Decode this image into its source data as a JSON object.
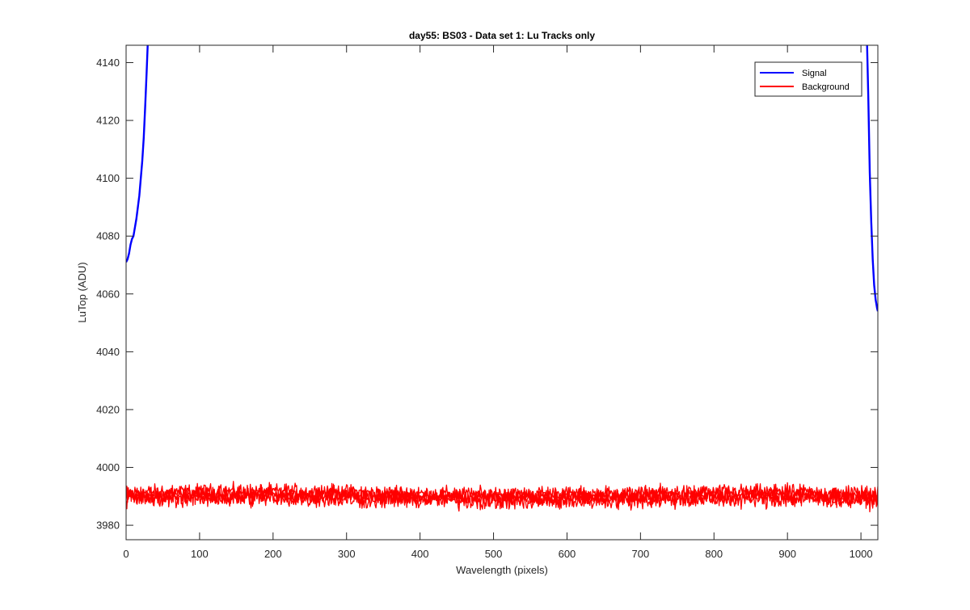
{
  "chart_data": {
    "type": "line",
    "title": "day55: BS03 - Data set 1: Lu Tracks only",
    "xlabel": "Wavelength (pixels)",
    "ylabel": "LuTop (ADU)",
    "xlim": [
      0,
      1023
    ],
    "ylim": [
      3975,
      4146
    ],
    "xticks": [
      0,
      100,
      200,
      300,
      400,
      500,
      600,
      700,
      800,
      900,
      1000
    ],
    "yticks": [
      3980,
      4000,
      4020,
      4040,
      4060,
      4080,
      4100,
      4120,
      4140
    ],
    "grid": false,
    "legend_position": "top-right",
    "series": [
      {
        "name": "Signal",
        "color": "#0000ff",
        "segments": [
          {
            "x": [
              0,
              2,
              4,
              6,
              8,
              10,
              12,
              14,
              16,
              18,
              20,
              22,
              24,
              26,
              28,
              30
            ],
            "y": [
              4071,
              4072,
              4074,
              4077,
              4079,
              4080,
              4083,
              4086,
              4090,
              4094,
              4100,
              4106,
              4114,
              4125,
              4137,
              4150
            ]
          },
          {
            "x": [
              1008,
              1010,
              1012,
              1014,
              1016,
              1018,
              1020,
              1022,
              1023
            ],
            "y": [
              4150,
              4128,
              4102,
              4085,
              4072,
              4063,
              4058,
              4055,
              4054
            ]
          }
        ]
      },
      {
        "name": "Background",
        "color": "#ff0000",
        "traces": [
          {
            "mean": 3991.3,
            "amp": 2.0
          },
          {
            "mean": 3990.5,
            "amp": 2.2
          },
          {
            "mean": 3989.8,
            "amp": 2.3
          },
          {
            "mean": 3989.0,
            "amp": 2.4
          }
        ]
      }
    ]
  }
}
